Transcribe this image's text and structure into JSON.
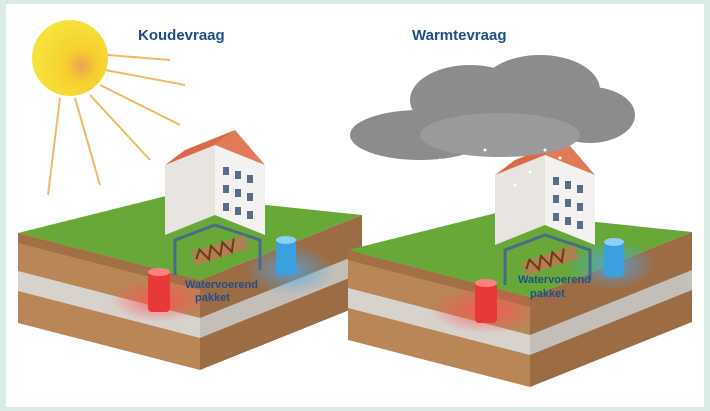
{
  "panels": [
    {
      "title": "Koudevraag",
      "aquifer_label": [
        "Watervoerend",
        "pakket"
      ]
    },
    {
      "title": "Warmtevraag",
      "aquifer_label": [
        "Watervoerend",
        "pakket"
      ]
    }
  ]
}
